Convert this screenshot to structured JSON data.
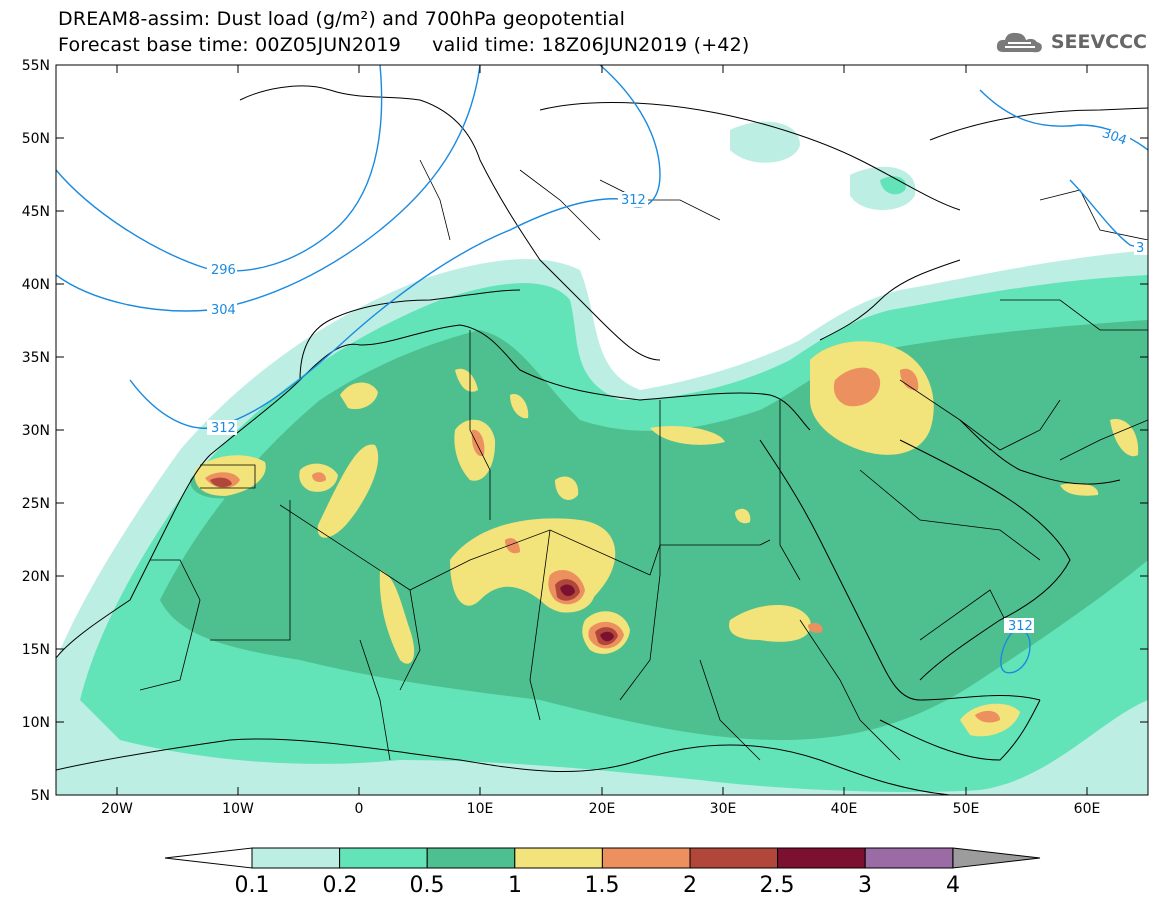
{
  "header": {
    "title_line1": "DREAM8-assim: Dust load (g/m²) and 700hPa geopotential",
    "title_line2": "Forecast base time: 00Z05JUN2019     valid time: 18Z06JUN2019 (+42)"
  },
  "logo": {
    "text": "SEEVCCC",
    "icon": "cloud-icon"
  },
  "map": {
    "lat_labels": [
      "55N",
      "50N",
      "45N",
      "40N",
      "35N",
      "30N",
      "25N",
      "20N",
      "15N",
      "10N",
      "5N"
    ],
    "lon_labels": [
      "20W",
      "10W",
      "0",
      "10E",
      "20E",
      "30E",
      "40E",
      "50E",
      "60E"
    ],
    "contour_labels": [
      "296",
      "304",
      "312",
      "312",
      "312",
      "304",
      "312",
      "3"
    ]
  },
  "colorbar": {
    "labels": [
      "0.1",
      "0.2",
      "0.5",
      "1",
      "1.5",
      "2",
      "2.5",
      "3",
      "4"
    ],
    "colors": [
      "#bdeee4",
      "#63e3b8",
      "#4ec08f",
      "#f2e37a",
      "#ed9060",
      "#b0473a",
      "#7c1030",
      "#9b6ba6",
      "#9c9c9c"
    ]
  }
}
